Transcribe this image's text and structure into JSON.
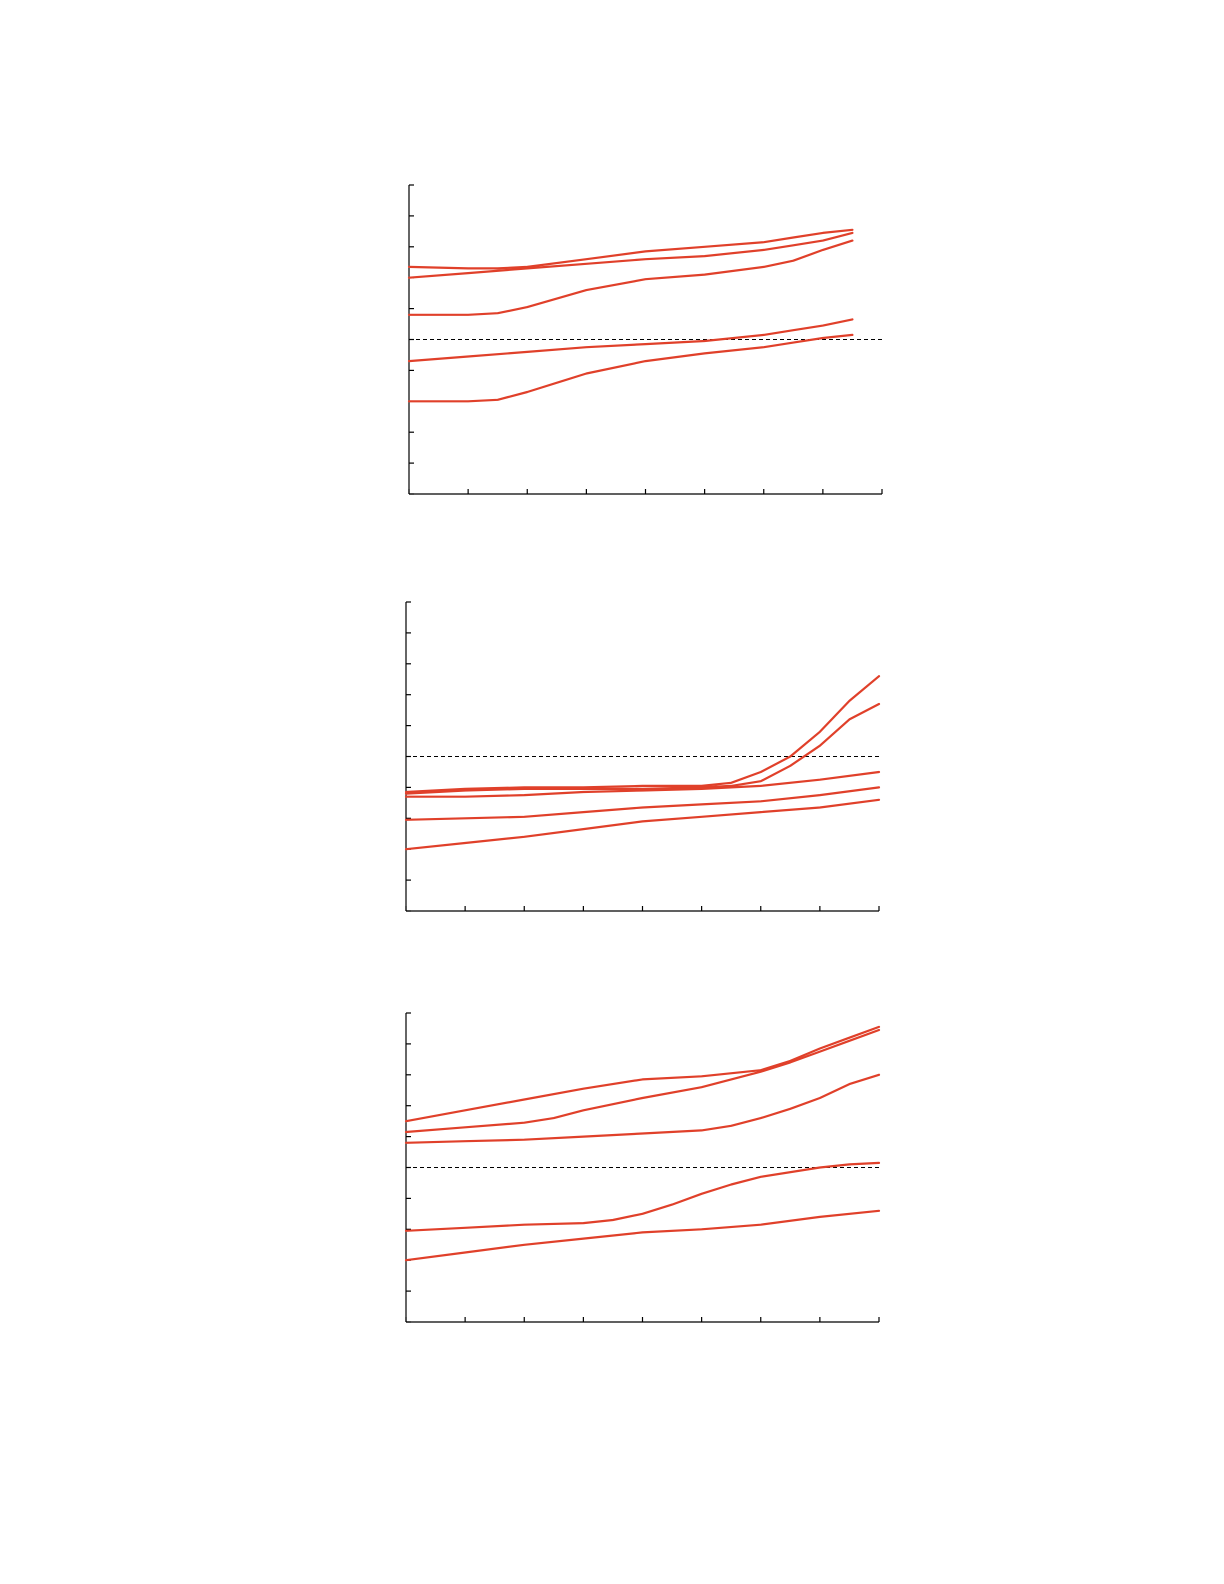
{
  "colors": {
    "series": "#e0402a",
    "axis": "#000000",
    "reference": "#000000"
  },
  "chart_data": [
    {
      "type": "line",
      "grid": false,
      "legend": "none",
      "xlim": [
        0,
        8
      ],
      "ylim": [
        0,
        10
      ],
      "x_ticks": [
        0,
        1,
        2,
        3,
        4,
        5,
        6,
        7,
        8
      ],
      "y_ticks": [
        0,
        1,
        2,
        3,
        4,
        5,
        6,
        7,
        8,
        9,
        10
      ],
      "reference_y": 5,
      "series": [
        {
          "x": [
            0,
            1,
            1.5,
            2,
            3,
            4,
            5,
            6,
            6.5,
            7,
            7.5
          ],
          "y": [
            7.35,
            7.3,
            7.3,
            7.35,
            7.6,
            7.85,
            8.0,
            8.15,
            8.3,
            8.45,
            8.55
          ]
        },
        {
          "x": [
            0,
            1,
            2,
            3,
            4,
            5,
            6,
            6.5,
            7,
            7.5
          ],
          "y": [
            7.0,
            7.15,
            7.3,
            7.45,
            7.6,
            7.7,
            7.9,
            8.05,
            8.2,
            8.45
          ]
        },
        {
          "x": [
            0,
            1,
            1.5,
            2,
            3,
            4,
            5,
            6,
            6.5,
            7,
            7.5
          ],
          "y": [
            5.8,
            5.8,
            5.85,
            6.05,
            6.6,
            6.95,
            7.1,
            7.35,
            7.55,
            7.9,
            8.2
          ]
        },
        {
          "x": [
            0,
            1,
            2,
            3,
            4,
            5,
            6,
            6.5,
            7,
            7.5
          ],
          "y": [
            4.3,
            4.45,
            4.6,
            4.75,
            4.85,
            4.95,
            5.15,
            5.3,
            5.45,
            5.65
          ]
        },
        {
          "x": [
            0,
            1,
            1.5,
            2,
            3,
            4,
            5,
            6,
            6.5,
            7,
            7.5
          ],
          "y": [
            3.0,
            3.0,
            3.05,
            3.3,
            3.9,
            4.3,
            4.55,
            4.75,
            4.9,
            5.05,
            5.15
          ]
        }
      ]
    },
    {
      "type": "line",
      "grid": false,
      "legend": "none",
      "xlim": [
        0,
        8
      ],
      "ylim": [
        0,
        10
      ],
      "x_ticks": [
        0,
        1,
        2,
        3,
        4,
        5,
        6,
        7,
        8
      ],
      "y_ticks": [
        0,
        1,
        2,
        3,
        4,
        5,
        6,
        7,
        8,
        9,
        10
      ],
      "reference_y": 5,
      "series": [
        {
          "x": [
            0,
            1,
            2,
            3,
            4,
            5,
            5.5,
            6,
            6.5,
            7,
            7.5,
            8
          ],
          "y": [
            3.85,
            3.95,
            4.0,
            4.0,
            4.05,
            4.05,
            4.15,
            4.5,
            5.0,
            5.8,
            6.8,
            7.6
          ]
        },
        {
          "x": [
            0,
            1,
            2,
            3,
            4,
            5,
            5.5,
            6,
            6.5,
            7,
            7.5,
            8
          ],
          "y": [
            3.8,
            3.9,
            3.95,
            3.95,
            3.95,
            4.0,
            4.05,
            4.2,
            4.7,
            5.35,
            6.2,
            6.7
          ]
        },
        {
          "x": [
            0,
            1,
            2,
            3,
            4,
            5,
            6,
            7,
            8
          ],
          "y": [
            3.7,
            3.7,
            3.75,
            3.85,
            3.9,
            3.95,
            4.05,
            4.25,
            4.5
          ]
        },
        {
          "x": [
            0,
            1,
            2,
            3,
            4,
            5,
            6,
            7,
            8
          ],
          "y": [
            2.95,
            3.0,
            3.05,
            3.2,
            3.35,
            3.45,
            3.55,
            3.75,
            4.0
          ]
        },
        {
          "x": [
            0,
            1,
            2,
            3,
            4,
            5,
            6,
            7,
            8
          ],
          "y": [
            2.0,
            2.2,
            2.4,
            2.65,
            2.9,
            3.05,
            3.2,
            3.35,
            3.6
          ]
        }
      ]
    },
    {
      "type": "line",
      "grid": false,
      "legend": "none",
      "xlim": [
        0,
        8
      ],
      "ylim": [
        0,
        10
      ],
      "x_ticks": [
        0,
        1,
        2,
        3,
        4,
        5,
        6,
        7,
        8
      ],
      "y_ticks": [
        0,
        1,
        2,
        3,
        4,
        5,
        6,
        7,
        8,
        9,
        10
      ],
      "reference_y": 5,
      "series": [
        {
          "x": [
            0,
            1,
            2,
            3,
            4,
            5,
            6,
            6.5,
            7,
            7.5,
            8
          ],
          "y": [
            6.5,
            6.85,
            7.2,
            7.55,
            7.85,
            7.95,
            8.15,
            8.45,
            8.85,
            9.2,
            9.55
          ]
        },
        {
          "x": [
            0,
            1,
            2,
            2.5,
            3,
            4,
            5,
            6,
            6.5,
            7,
            7.5,
            8
          ],
          "y": [
            6.15,
            6.3,
            6.45,
            6.6,
            6.85,
            7.25,
            7.6,
            8.1,
            8.4,
            8.75,
            9.1,
            9.45
          ]
        },
        {
          "x": [
            0,
            1,
            2,
            3,
            4,
            5,
            5.5,
            6,
            6.5,
            7,
            7.5,
            8
          ],
          "y": [
            5.8,
            5.85,
            5.9,
            6.0,
            6.1,
            6.2,
            6.35,
            6.6,
            6.9,
            7.25,
            7.7,
            8.0
          ]
        },
        {
          "x": [
            0,
            1,
            2,
            3,
            3.5,
            4,
            4.5,
            5,
            5.5,
            6,
            7,
            7.5,
            8
          ],
          "y": [
            2.95,
            3.05,
            3.15,
            3.2,
            3.3,
            3.5,
            3.8,
            4.15,
            4.45,
            4.7,
            5.0,
            5.1,
            5.15
          ]
        },
        {
          "x": [
            0,
            1,
            2,
            3,
            4,
            5,
            6,
            7,
            8
          ],
          "y": [
            2.0,
            2.25,
            2.5,
            2.7,
            2.9,
            3.0,
            3.15,
            3.4,
            3.6
          ]
        }
      ]
    }
  ]
}
